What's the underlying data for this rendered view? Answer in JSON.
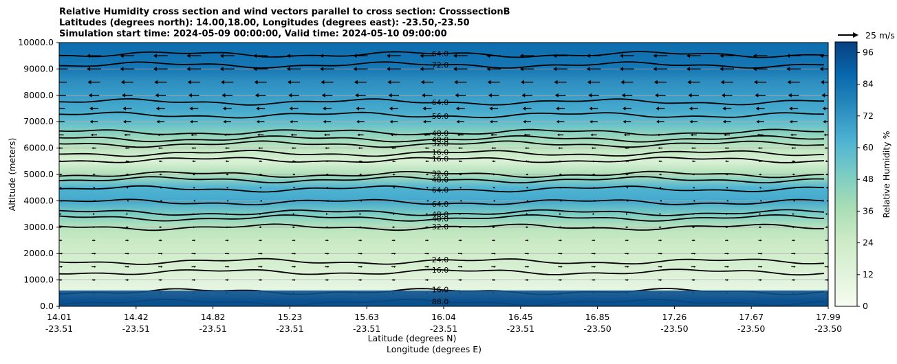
{
  "chart_data": {
    "type": "heatmap",
    "title_lines": [
      "Relative Humidity cross section and wind vectors parallel to cross section: CrosssectionB",
      "Latitudes (degrees north): 14.00,18.00, Longitudes (degrees east): -23.50,-23.50",
      "Simulation start time: 2024-05-09 00:00:00, Valid time: 2024-05-10 09:00:00"
    ],
    "xlabel_lat": "Latitude (degrees N)",
    "xlabel_lon": "Longitude (degrees E)",
    "ylabel": "Altitude (meters)",
    "colorbar_label": "Relative Humidity %",
    "quiver_key": "25 m/s",
    "xticks": [
      {
        "lat": "14.01",
        "lon": "-23.51"
      },
      {
        "lat": "14.42",
        "lon": "-23.51"
      },
      {
        "lat": "14.82",
        "lon": "-23.51"
      },
      {
        "lat": "15.23",
        "lon": "-23.51"
      },
      {
        "lat": "15.63",
        "lon": "-23.51"
      },
      {
        "lat": "16.04",
        "lon": "-23.51"
      },
      {
        "lat": "16.45",
        "lon": "-23.51"
      },
      {
        "lat": "16.85",
        "lon": "-23.50"
      },
      {
        "lat": "17.26",
        "lon": "-23.50"
      },
      {
        "lat": "17.67",
        "lon": "-23.50"
      },
      {
        "lat": "17.99",
        "lon": "-23.50"
      }
    ],
    "yticks": [
      "0.0",
      "1000.0",
      "2000.0",
      "3000.0",
      "4000.0",
      "5000.0",
      "6000.0",
      "7000.0",
      "8000.0",
      "9000.0",
      "10000.0"
    ],
    "ylim": [
      0,
      10000
    ],
    "colorbar_ticks": [
      "0",
      "12",
      "24",
      "36",
      "48",
      "60",
      "72",
      "84",
      "96"
    ],
    "colorbar_range": [
      0,
      100
    ],
    "colormap": [
      "#f7fcf0",
      "#e0f3db",
      "#ccebc5",
      "#a8ddb5",
      "#7bccc4",
      "#4eb3d3",
      "#2b8cbe",
      "#0868ac",
      "#084081"
    ],
    "profile": [
      {
        "alt": 0,
        "rh": 90
      },
      {
        "alt": 200,
        "rh": 85
      },
      {
        "alt": 500,
        "rh": 8
      },
      {
        "alt": 1000,
        "rh": 12
      },
      {
        "alt": 1500,
        "rh": 18
      },
      {
        "alt": 2000,
        "rh": 22
      },
      {
        "alt": 2500,
        "rh": 26
      },
      {
        "alt": 3000,
        "rh": 32
      },
      {
        "alt": 3500,
        "rh": 50
      },
      {
        "alt": 4000,
        "rh": 66
      },
      {
        "alt": 4500,
        "rh": 62
      },
      {
        "alt": 5000,
        "rh": 35
      },
      {
        "alt": 5500,
        "rh": 16
      },
      {
        "alt": 6000,
        "rh": 30
      },
      {
        "alt": 6500,
        "rh": 44
      },
      {
        "alt": 7000,
        "rh": 58
      },
      {
        "alt": 7500,
        "rh": 66
      },
      {
        "alt": 8500,
        "rh": 74
      },
      {
        "alt": 9000,
        "rh": 82
      },
      {
        "alt": 10000,
        "rh": 86
      }
    ],
    "contours": [
      {
        "label": "64.0",
        "alt": 9550
      },
      {
        "label": "72.0",
        "alt": 9150
      },
      {
        "label": "64.0",
        "alt": 7750
      },
      {
        "label": "56.0",
        "alt": 7250
      },
      {
        "label": "48.0",
        "alt": 6600
      },
      {
        "label": "40.0",
        "alt": 6350
      },
      {
        "label": "32.0",
        "alt": 6150
      },
      {
        "label": "16.0",
        "alt": 5800
      },
      {
        "label": "16.0",
        "alt": 5550
      },
      {
        "label": "32.0",
        "alt": 5000
      },
      {
        "label": "48.0",
        "alt": 4800
      },
      {
        "label": "64.0",
        "alt": 4450
      },
      {
        "label": "64.0",
        "alt": 3950
      },
      {
        "label": "48.0",
        "alt": 3550
      },
      {
        "label": "40.0",
        "alt": 3350
      },
      {
        "label": "32.0",
        "alt": 3000
      },
      {
        "label": "24.0",
        "alt": 1700
      },
      {
        "label": "16.0",
        "alt": 1300
      },
      {
        "label": "16.0",
        "alt": 560
      },
      {
        "label": "88.0",
        "alt": 150
      }
    ],
    "wind_levels": [
      {
        "alt": 9500,
        "u": -16
      },
      {
        "alt": 9000,
        "u": -16
      },
      {
        "alt": 8500,
        "u": -14
      },
      {
        "alt": 8000,
        "u": -12
      },
      {
        "alt": 7500,
        "u": -10
      },
      {
        "alt": 7000,
        "u": -9
      },
      {
        "alt": 6500,
        "u": -7
      },
      {
        "alt": 6000,
        "u": -5
      },
      {
        "alt": 5500,
        "u": -4
      },
      {
        "alt": 5000,
        "u": -3
      },
      {
        "alt": 4500,
        "u": -2
      },
      {
        "alt": 4000,
        "u": -1
      },
      {
        "alt": 3500,
        "u": 2
      },
      {
        "alt": 3000,
        "u": 3
      },
      {
        "alt": 2500,
        "u": 4
      },
      {
        "alt": 2000,
        "u": 5
      },
      {
        "alt": 1500,
        "u": 5
      },
      {
        "alt": 1000,
        "u": 4
      },
      {
        "alt": 500,
        "u": 2
      }
    ]
  }
}
